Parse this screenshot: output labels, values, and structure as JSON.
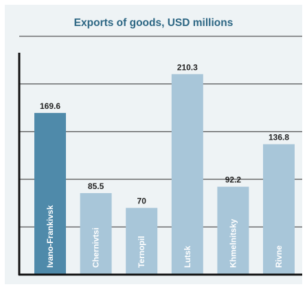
{
  "chart_data": {
    "type": "bar",
    "title": "Exports of goods, USD millions",
    "categories": [
      "Ivano-Frankivsk",
      "Chernivtsi",
      "Ternopil",
      "Lutsk",
      "Khmelnitsky",
      "Rivne"
    ],
    "values": [
      169.6,
      85.5,
      70,
      210.3,
      92.2,
      136.8
    ],
    "value_labels": [
      "169.6",
      "85.5",
      "70",
      "210.3",
      "92.2",
      "136.8"
    ],
    "ylim": [
      0,
      250
    ],
    "grid": true,
    "xlabel": "",
    "ylabel": "",
    "colors": {
      "highlight": "#4f8aaa",
      "bar": "#a8c6d9",
      "grid": "#2a2a2a",
      "text": "#222222",
      "title": "#2c6683",
      "card_background": "#eef3f5"
    }
  }
}
